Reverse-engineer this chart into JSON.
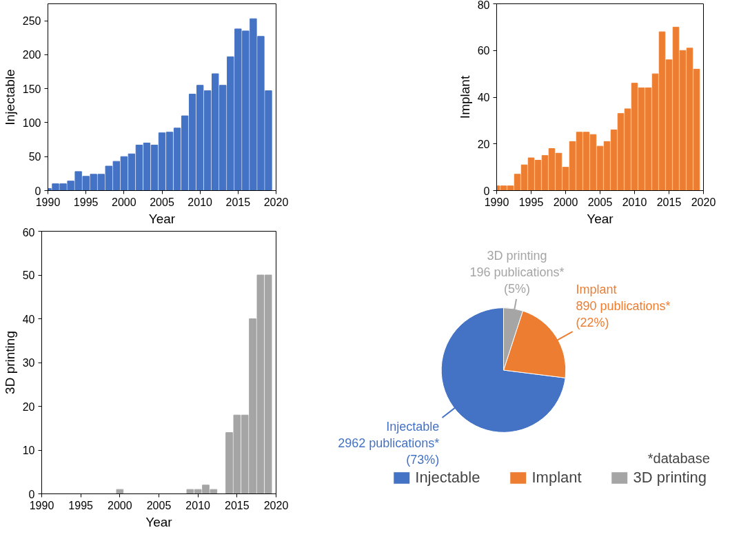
{
  "chart_data": [
    {
      "type": "bar",
      "xlabel": "Year",
      "ylabel": "Injectable",
      "x": [
        1990,
        1991,
        1992,
        1993,
        1994,
        1995,
        1996,
        1997,
        1998,
        1999,
        2000,
        2001,
        2002,
        2003,
        2004,
        2005,
        2006,
        2007,
        2008,
        2009,
        2010,
        2011,
        2012,
        2013,
        2014,
        2015,
        2016,
        2017,
        2018,
        2019
      ],
      "series": [
        {
          "color": "#4472c4",
          "values": [
            3,
            10,
            10,
            14,
            28,
            21,
            24,
            24,
            36,
            43,
            50,
            54,
            67,
            70,
            67,
            85,
            86,
            92,
            110,
            142,
            155,
            147,
            172,
            155,
            197,
            238,
            235,
            253,
            227,
            147
          ]
        }
      ],
      "xlim": [
        1990,
        2020
      ],
      "xticks": [
        1990,
        1995,
        2000,
        2005,
        2010,
        2015,
        2020
      ],
      "ylim": [
        0,
        275
      ],
      "yticks": [
        0,
        50,
        100,
        150,
        200,
        250
      ],
      "grid": false,
      "legend": false
    },
    {
      "type": "bar",
      "xlabel": "Year",
      "ylabel": "Implant",
      "x": [
        1990,
        1991,
        1992,
        1993,
        1994,
        1995,
        1996,
        1997,
        1998,
        1999,
        2000,
        2001,
        2002,
        2003,
        2004,
        2005,
        2006,
        2007,
        2008,
        2009,
        2010,
        2011,
        2012,
        2013,
        2014,
        2015,
        2016,
        2017,
        2018,
        2019
      ],
      "series": [
        {
          "color": "#ed7d31",
          "values": [
            2,
            2,
            2,
            7,
            11,
            14,
            13,
            15,
            18,
            16,
            10,
            21,
            25,
            25,
            24,
            19,
            21,
            26,
            33,
            35,
            46,
            44,
            44,
            50,
            68,
            56,
            70,
            60,
            61,
            52
          ]
        }
      ],
      "xlim": [
        1990,
        2020
      ],
      "xticks": [
        1990,
        1995,
        2000,
        2005,
        2010,
        2015,
        2020
      ],
      "ylim": [
        0,
        80
      ],
      "yticks": [
        0,
        20,
        40,
        60,
        80
      ],
      "grid": false,
      "legend": false
    },
    {
      "type": "bar",
      "xlabel": "Year",
      "ylabel": "3D printing",
      "x": [
        1990,
        1991,
        1992,
        1993,
        1994,
        1995,
        1996,
        1997,
        1998,
        1999,
        2000,
        2001,
        2002,
        2003,
        2004,
        2005,
        2006,
        2007,
        2008,
        2009,
        2010,
        2011,
        2012,
        2013,
        2014,
        2015,
        2016,
        2017,
        2018,
        2019
      ],
      "series": [
        {
          "color": "#a5a5a5",
          "values": [
            0,
            0,
            0,
            0,
            0,
            0,
            0,
            0,
            0,
            0,
            1,
            0,
            0,
            0,
            0,
            0,
            0,
            0,
            0,
            1,
            1,
            2,
            1,
            0,
            14,
            18,
            18,
            40,
            50,
            50
          ]
        }
      ],
      "xlim": [
        1990,
        2020
      ],
      "xticks": [
        1990,
        1995,
        2000,
        2005,
        2010,
        2015,
        2020
      ],
      "ylim": [
        0,
        60
      ],
      "yticks": [
        0,
        10,
        20,
        30,
        40,
        50,
        60
      ],
      "grid": false,
      "legend": false
    },
    {
      "type": "pie",
      "categories": [
        "Injectable",
        "Implant",
        "3D printing"
      ],
      "values": [
        73,
        22,
        5
      ],
      "colors": [
        "#4472c4",
        "#ed7d31",
        "#a5a5a5"
      ],
      "value_labels": [
        "Injectable\n2962 publications*\n(73%)",
        "Implant\n890 publications*\n(22%)",
        "3D printing\n196 publications*\n(5%)"
      ],
      "legend": "bottom",
      "annotations": [
        "*database"
      ]
    }
  ]
}
